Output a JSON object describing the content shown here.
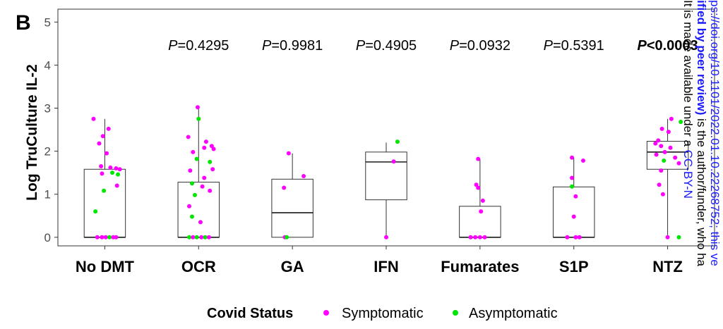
{
  "panel_letter": "B",
  "chart_data": {
    "type": "box",
    "ylabel": "Log TruCulture IL-2",
    "xlabel": "",
    "ylim": [
      -0.2,
      5.3
    ],
    "yticks": [
      "0",
      "1",
      "2",
      "3",
      "4",
      "5"
    ],
    "categories": [
      "No DMT",
      "OCR",
      "GA",
      "IFN",
      "Fumarates",
      "S1P",
      "NTZ"
    ],
    "p_values": [
      "=0.4295",
      "=0.9981",
      "=0.4905",
      "=0.0932",
      "=0.5391",
      "<0.0003"
    ],
    "p_symbol": "P",
    "boxes": [
      {
        "min": 0,
        "q1": 0,
        "median": 0,
        "q3": 1.58,
        "max": 2.75
      },
      {
        "min": 0,
        "q1": 0,
        "median": 0,
        "q3": 1.28,
        "max": 3.02
      },
      {
        "min": 0,
        "q1": 0,
        "median": 0.57,
        "q3": 1.35,
        "max": 1.95
      },
      {
        "min": 0,
        "q1": 0.87,
        "median": 1.75,
        "q3": 1.98,
        "max": 2.2
      },
      {
        "min": 0,
        "q1": 0,
        "median": 0,
        "q3": 0.72,
        "max": 1.82
      },
      {
        "min": 0,
        "q1": 0,
        "median": 0,
        "q3": 1.17,
        "max": 1.85
      },
      {
        "min": 0,
        "q1": 1.58,
        "median": 1.98,
        "q3": 2.23,
        "max": 2.75
      }
    ],
    "points": [
      [
        {
          "y": 2.75,
          "dx": -0.12,
          "s": 1
        },
        {
          "y": 2.52,
          "dx": 0.04,
          "s": 1
        },
        {
          "y": 2.35,
          "dx": -0.02,
          "s": 1
        },
        {
          "y": 2.18,
          "dx": -0.06,
          "s": 1
        },
        {
          "y": 1.95,
          "dx": 0.02,
          "s": 1
        },
        {
          "y": 1.65,
          "dx": -0.04,
          "s": 1
        },
        {
          "y": 1.62,
          "dx": 0.06,
          "s": 1
        },
        {
          "y": 1.6,
          "dx": 0.12,
          "s": 1
        },
        {
          "y": 1.58,
          "dx": 0.16,
          "s": 1
        },
        {
          "y": 1.5,
          "dx": 0.08,
          "s": 0
        },
        {
          "y": 1.46,
          "dx": 0.14,
          "s": 0
        },
        {
          "y": 1.48,
          "dx": -0.03,
          "s": 1
        },
        {
          "y": 1.2,
          "dx": 0.13,
          "s": 1
        },
        {
          "y": 1.08,
          "dx": -0.01,
          "s": 0
        },
        {
          "y": 0.6,
          "dx": -0.1,
          "s": 0
        },
        {
          "y": 0,
          "dx": -0.08,
          "s": 1
        },
        {
          "y": 0,
          "dx": -0.03,
          "s": 1
        },
        {
          "y": 0,
          "dx": 0.01,
          "s": 1
        },
        {
          "y": 0,
          "dx": 0.05,
          "s": 0
        },
        {
          "y": 0,
          "dx": 0.09,
          "s": 1
        },
        {
          "y": 0,
          "dx": 0.12,
          "s": 1
        }
      ],
      [
        {
          "y": 3.02,
          "dx": -0.01,
          "s": 1
        },
        {
          "y": 2.75,
          "dx": 0.0,
          "s": 0
        },
        {
          "y": 2.33,
          "dx": -0.11,
          "s": 1
        },
        {
          "y": 2.22,
          "dx": 0.08,
          "s": 1
        },
        {
          "y": 2.12,
          "dx": 0.14,
          "s": 1
        },
        {
          "y": 2.08,
          "dx": 0.06,
          "s": 1
        },
        {
          "y": 2.05,
          "dx": 0.16,
          "s": 1
        },
        {
          "y": 1.98,
          "dx": -0.06,
          "s": 1
        },
        {
          "y": 1.82,
          "dx": -0.02,
          "s": 0
        },
        {
          "y": 1.75,
          "dx": 0.12,
          "s": 0
        },
        {
          "y": 1.58,
          "dx": 0.15,
          "s": 1
        },
        {
          "y": 1.55,
          "dx": -0.09,
          "s": 1
        },
        {
          "y": 1.38,
          "dx": 0.06,
          "s": 1
        },
        {
          "y": 1.25,
          "dx": -0.07,
          "s": 0
        },
        {
          "y": 1.18,
          "dx": 0.04,
          "s": 1
        },
        {
          "y": 1.08,
          "dx": 0.12,
          "s": 1
        },
        {
          "y": 0.98,
          "dx": -0.04,
          "s": 0
        },
        {
          "y": 0.72,
          "dx": -0.1,
          "s": 1
        },
        {
          "y": 0.48,
          "dx": -0.07,
          "s": 0
        },
        {
          "y": 0.35,
          "dx": 0.02,
          "s": 1
        },
        {
          "y": 0,
          "dx": -0.1,
          "s": 0
        },
        {
          "y": 0,
          "dx": -0.06,
          "s": 1
        },
        {
          "y": 0,
          "dx": -0.02,
          "s": 0
        },
        {
          "y": 0,
          "dx": 0.03,
          "s": 1
        },
        {
          "y": 0,
          "dx": 0.07,
          "s": 0
        },
        {
          "y": 0,
          "dx": 0.11,
          "s": 1
        }
      ],
      [
        {
          "y": 1.95,
          "dx": -0.04,
          "s": 1
        },
        {
          "y": 1.42,
          "dx": 0.12,
          "s": 1
        },
        {
          "y": 1.15,
          "dx": -0.09,
          "s": 1
        },
        {
          "y": 0,
          "dx": -0.08,
          "s": 1
        },
        {
          "y": 0,
          "dx": -0.06,
          "s": 0
        }
      ],
      [
        {
          "y": 2.22,
          "dx": 0.12,
          "s": 0
        },
        {
          "y": 1.76,
          "dx": 0.08,
          "s": 1
        },
        {
          "y": 0,
          "dx": 0.0,
          "s": 1
        }
      ],
      [
        {
          "y": 1.82,
          "dx": -0.02,
          "s": 1
        },
        {
          "y": 1.22,
          "dx": -0.04,
          "s": 1
        },
        {
          "y": 1.15,
          "dx": -0.02,
          "s": 1
        },
        {
          "y": 0.85,
          "dx": 0.03,
          "s": 1
        },
        {
          "y": 0.6,
          "dx": 0.01,
          "s": 1
        },
        {
          "y": 0,
          "dx": -0.1,
          "s": 1
        },
        {
          "y": 0,
          "dx": -0.05,
          "s": 1
        },
        {
          "y": 0,
          "dx": 0.0,
          "s": 1
        },
        {
          "y": 0,
          "dx": 0.05,
          "s": 1
        }
      ],
      [
        {
          "y": 1.85,
          "dx": -0.02,
          "s": 1
        },
        {
          "y": 1.78,
          "dx": 0.1,
          "s": 1
        },
        {
          "y": 1.38,
          "dx": -0.02,
          "s": 1
        },
        {
          "y": 1.18,
          "dx": -0.02,
          "s": 0
        },
        {
          "y": 0.95,
          "dx": 0.02,
          "s": 1
        },
        {
          "y": 0.48,
          "dx": 0.0,
          "s": 1
        },
        {
          "y": 0,
          "dx": -0.07,
          "s": 1
        },
        {
          "y": 0,
          "dx": 0.02,
          "s": 1
        },
        {
          "y": 0,
          "dx": 0.06,
          "s": 1
        }
      ],
      [
        {
          "y": 2.75,
          "dx": 0.04,
          "s": 1
        },
        {
          "y": 2.68,
          "dx": 0.14,
          "s": 0
        },
        {
          "y": 2.52,
          "dx": -0.06,
          "s": 1
        },
        {
          "y": 2.45,
          "dx": 0.01,
          "s": 1
        },
        {
          "y": 2.25,
          "dx": -0.1,
          "s": 1
        },
        {
          "y": 2.18,
          "dx": -0.13,
          "s": 1
        },
        {
          "y": 2.12,
          "dx": -0.07,
          "s": 1
        },
        {
          "y": 2.08,
          "dx": 0.03,
          "s": 1
        },
        {
          "y": 1.98,
          "dx": -0.03,
          "s": 1
        },
        {
          "y": 1.92,
          "dx": -0.12,
          "s": 1
        },
        {
          "y": 1.85,
          "dx": 0.08,
          "s": 1
        },
        {
          "y": 1.78,
          "dx": -0.04,
          "s": 0
        },
        {
          "y": 1.72,
          "dx": 0.12,
          "s": 1
        },
        {
          "y": 1.55,
          "dx": -0.07,
          "s": 1
        },
        {
          "y": 1.22,
          "dx": -0.09,
          "s": 1
        },
        {
          "y": 1.0,
          "dx": -0.05,
          "s": 1
        },
        {
          "y": 0,
          "dx": 0.0,
          "s": 1
        },
        {
          "y": 0,
          "dx": 0.12,
          "s": 0
        }
      ]
    ]
  },
  "legend": {
    "title": "Covid Status",
    "items": [
      {
        "label": "Symptomatic",
        "color": "#ff00ff"
      },
      {
        "label": "Asymptomatic",
        "color": "#00e600"
      }
    ]
  },
  "watermark": {
    "line1": "ps://doi.org/10.1101/2022.01.10.22268752; this ve",
    "line2a": "ified by peer review)",
    "line2b": " is the author/funder, who ha",
    "line3a": "It is made available under a ",
    "line3b": "CC-BY-N"
  }
}
